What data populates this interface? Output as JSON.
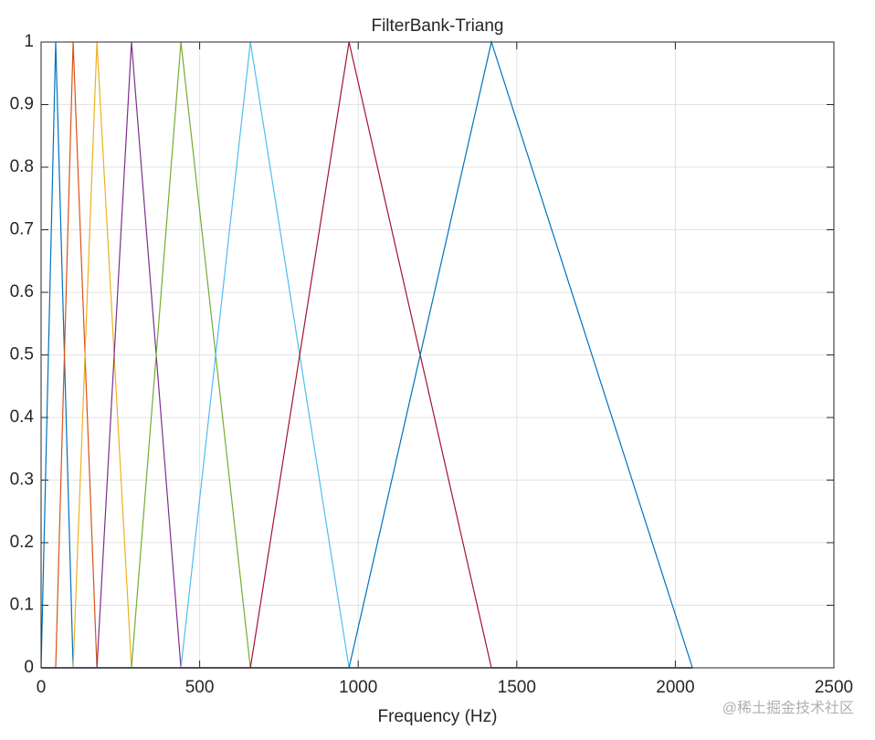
{
  "chart_data": {
    "type": "line",
    "title": "FilterBank-Triang",
    "x_label": "Frequency (Hz)",
    "x": [
      0,
      46,
      101,
      176,
      285,
      441,
      660,
      971,
      1420,
      2054
    ],
    "series": [
      {
        "color": "#0072BD",
        "values": [
          0,
          1,
          0,
          0,
          0,
          0,
          0,
          0,
          0,
          0
        ]
      },
      {
        "color": "#D95319",
        "values": [
          0,
          0,
          1,
          0,
          0,
          0,
          0,
          0,
          0,
          0
        ]
      },
      {
        "color": "#EDB120",
        "values": [
          0,
          0,
          0,
          1,
          0,
          0,
          0,
          0,
          0,
          0
        ]
      },
      {
        "color": "#7E2F8E",
        "values": [
          0,
          0,
          0,
          0,
          1,
          0,
          0,
          0,
          0,
          0
        ]
      },
      {
        "color": "#77AC30",
        "values": [
          0,
          0,
          0,
          0,
          0,
          1,
          0,
          0,
          0,
          0
        ]
      },
      {
        "color": "#4DBEEE",
        "values": [
          0,
          0,
          0,
          0,
          0,
          0,
          1,
          0,
          0,
          0
        ]
      },
      {
        "color": "#A2142F",
        "values": [
          0,
          0,
          0,
          0,
          0,
          0,
          0,
          1,
          0,
          0
        ]
      },
      {
        "color": "#0072BD",
        "values": [
          0,
          0,
          0,
          0,
          0,
          0,
          0,
          0,
          1,
          0
        ]
      }
    ],
    "xlim": [
      0,
      2500
    ],
    "xticks": [
      0,
      500,
      1000,
      1500,
      2000,
      2500
    ],
    "ylim": [
      0,
      1
    ],
    "yticks": [
      0,
      0.1,
      0.2,
      0.3,
      0.4,
      0.5,
      0.6,
      0.7,
      0.8,
      0.9,
      1
    ],
    "grid": true,
    "watermark": "@稀土掘金技术社区"
  }
}
